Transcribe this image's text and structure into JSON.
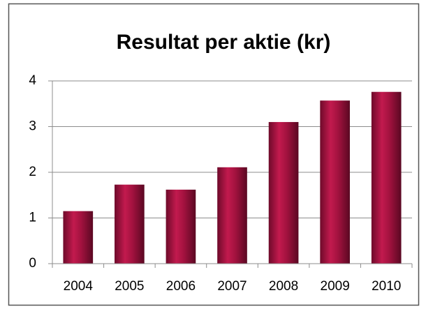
{
  "chart_data": {
    "type": "bar",
    "title": "Resultat per aktie (kr)",
    "categories": [
      "2004",
      "2005",
      "2006",
      "2007",
      "2008",
      "2009",
      "2010"
    ],
    "values": [
      1.15,
      1.73,
      1.62,
      2.11,
      3.1,
      3.57,
      3.76
    ],
    "color": "#a3123f",
    "ylim": [
      0,
      4
    ],
    "yticks": [
      0,
      1,
      2,
      3,
      4
    ],
    "grid": true
  }
}
